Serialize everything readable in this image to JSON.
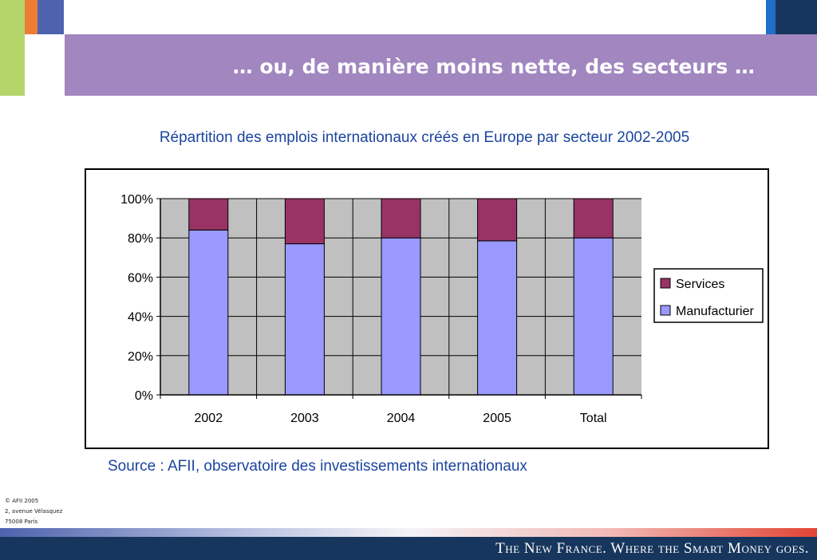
{
  "slide": {
    "title": "… ou, de manière moins nette, des secteurs …",
    "subtitle": "Répartition des emplois internationaux créés en Europe par secteur 2002-2005",
    "source": "Source : AFII, observatoire des investissements internationaux",
    "footnotes": [
      "© AFII 2005",
      "2, avenue Vélasquez",
      "75008 Paris"
    ],
    "tagline": "The New France. Where the Smart Money goes."
  },
  "colors": {
    "manufacturier": "#9999ff",
    "services": "#993366",
    "plot_background": "#c0c0c0",
    "accent_blue": "#1b45a0",
    "title_band": "#a186c0",
    "navy": "#17365d"
  },
  "chart_data": {
    "type": "bar",
    "stacked": true,
    "normalized": true,
    "categories": [
      "2002",
      "2003",
      "2004",
      "2005",
      "Total"
    ],
    "series": [
      {
        "name": "Manufacturier",
        "values": [
          84,
          77,
          80,
          78.5,
          80
        ]
      },
      {
        "name": "Services",
        "values": [
          16,
          23,
          20,
          21.5,
          20
        ]
      }
    ],
    "yticks": [
      "0%",
      "20%",
      "40%",
      "60%",
      "80%",
      "100%"
    ],
    "ylim": [
      0,
      100
    ],
    "grid": true,
    "legend_position": "right"
  }
}
